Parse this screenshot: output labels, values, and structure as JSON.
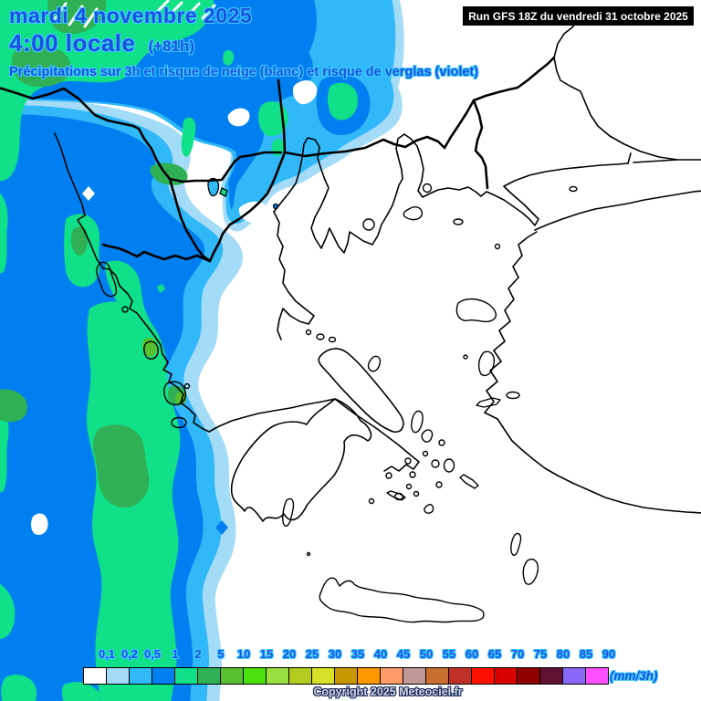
{
  "header": {
    "date": "mardi 4 novembre 2025",
    "time": "4:00 locale",
    "forecast_offset": "(+81h)",
    "subtitle": "Précipitations sur 3h et risque de neige (blanc) et risque de verglas (violet)",
    "run": "Run GFS 18Z du vendredi 31 octobre 2025"
  },
  "legend": {
    "unit": "(mm/3h)",
    "entries": [
      {
        "label": "0,1",
        "color": "#ffffff"
      },
      {
        "label": "0,2",
        "color": "#a4dcf8"
      },
      {
        "label": "0,5",
        "color": "#30b8f8"
      },
      {
        "label": "1",
        "color": "#0080f0"
      },
      {
        "label": "2",
        "color": "#10e088"
      },
      {
        "label": "5",
        "color": "#30b054"
      },
      {
        "label": "10",
        "color": "#58c030"
      },
      {
        "label": "15",
        "color": "#4ce00c"
      },
      {
        "label": "20",
        "color": "#98e040"
      },
      {
        "label": "25",
        "color": "#b4cc20"
      },
      {
        "label": "30",
        "color": "#d8e028"
      },
      {
        "label": "35",
        "color": "#c89800"
      },
      {
        "label": "40",
        "color": "#ff9800"
      },
      {
        "label": "45",
        "color": "#ff9c68"
      },
      {
        "label": "50",
        "color": "#c09898"
      },
      {
        "label": "55",
        "color": "#c87030"
      },
      {
        "label": "60",
        "color": "#c03028"
      },
      {
        "label": "65",
        "color": "#ff1000"
      },
      {
        "label": "70",
        "color": "#d80000"
      },
      {
        "label": "75",
        "color": "#900000"
      },
      {
        "label": "80",
        "color": "#601030"
      },
      {
        "label": "85",
        "color": "#8868f8"
      },
      {
        "label": "90",
        "color": "#ff50ff"
      }
    ]
  },
  "footer": {
    "copyright": "Copyright 2025 Meteociel.fr"
  }
}
